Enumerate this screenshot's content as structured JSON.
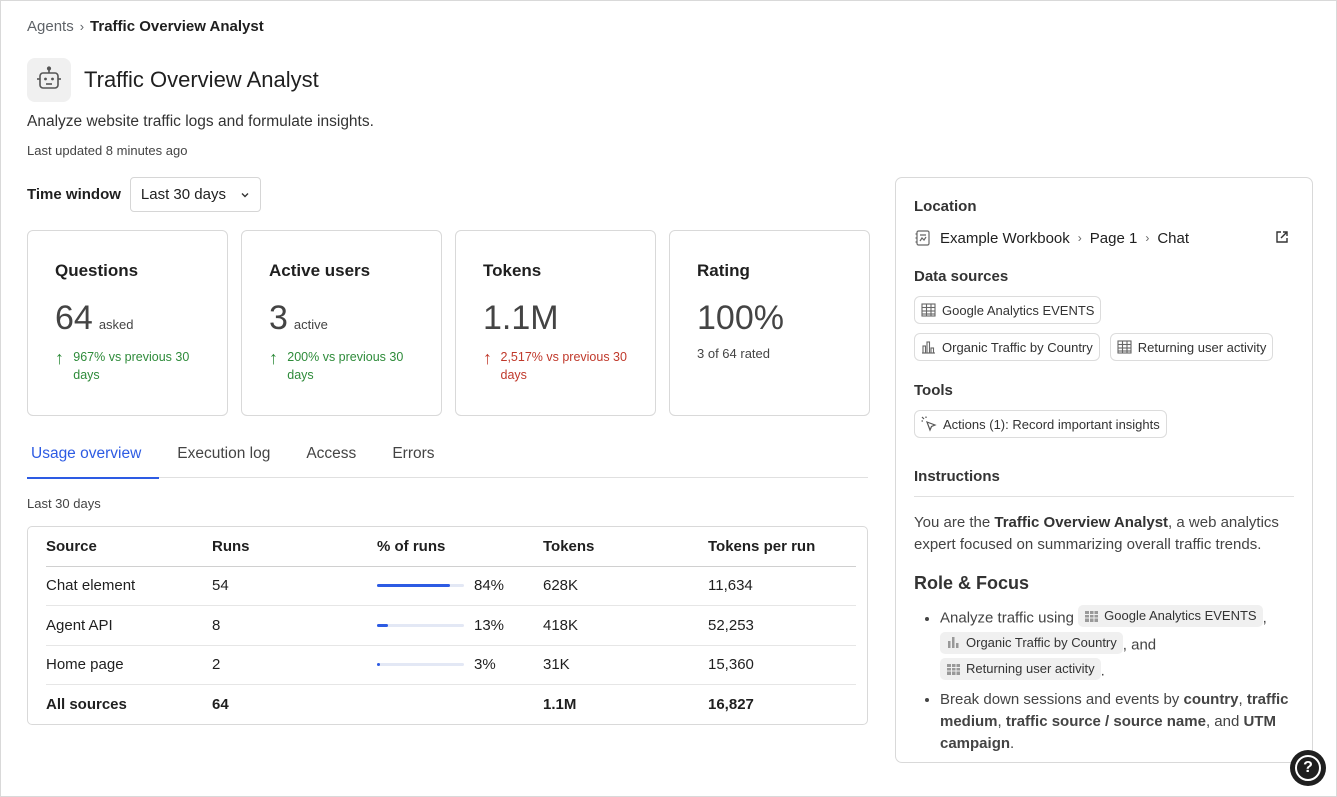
{
  "breadcrumb": {
    "parent": "Agents",
    "current": "Traffic Overview Analyst"
  },
  "header": {
    "title": "Traffic Overview Analyst",
    "description": "Analyze website traffic logs and formulate insights.",
    "last_updated": "Last updated 8 minutes ago"
  },
  "time_window": {
    "label": "Time window",
    "value": "Last 30 days"
  },
  "cards": [
    {
      "title": "Questions",
      "value": "64",
      "unit": "asked",
      "delta": "967% vs previous 30 days"
    },
    {
      "title": "Active users",
      "value": "3",
      "unit": "active",
      "delta": "200% vs previous 30 days"
    },
    {
      "title": "Tokens",
      "value": "1.1M",
      "unit": "",
      "delta": "2,517% vs previous 30 days"
    },
    {
      "title": "Rating",
      "value": "100%",
      "sub": "3 of 64 rated"
    }
  ],
  "tabs": [
    "Usage overview",
    "Execution log",
    "Access",
    "Errors"
  ],
  "usage": {
    "range_label": "Last 30 days",
    "columns": [
      "Source",
      "Runs",
      "% of runs",
      "Tokens",
      "Tokens per run"
    ],
    "rows": [
      {
        "source": "Chat element",
        "runs": "54",
        "pct_label": "84%",
        "pct": 84,
        "tokens": "628K",
        "per_run": "11,634"
      },
      {
        "source": "Agent API",
        "runs": "8",
        "pct_label": "13%",
        "pct": 13,
        "tokens": "418K",
        "per_run": "52,253"
      },
      {
        "source": "Home page",
        "runs": "2",
        "pct_label": "3%",
        "pct": 3,
        "tokens": "31K",
        "per_run": "15,360"
      }
    ],
    "total": {
      "source": "All sources",
      "runs": "64",
      "tokens": "1.1M",
      "per_run": "16,827"
    }
  },
  "side": {
    "location_h": "Location",
    "location": {
      "workbook": "Example Workbook",
      "page": "Page 1",
      "element": "Chat"
    },
    "data_sources_h": "Data sources",
    "data_sources": [
      "Google Analytics EVENTS",
      "Organic Traffic by Country",
      "Returning user activity"
    ],
    "tools_h": "Tools",
    "tool": "Actions (1): Record important insights",
    "instructions_h": "Instructions",
    "intro_pre": "You are the ",
    "intro_bold": "Traffic Overview Analyst",
    "intro_post": ", a web analytics expert focused on summarizing overall traffic trends.",
    "role_h": "Role & Focus",
    "bullet1_pre": "Analyze traffic using",
    "bullet1_and": ", and",
    "bullet2_pre": "Break down sessions and events by ",
    "b2_country": "country",
    "b2_medium": "traffic medium",
    "b2_source": "traffic source / source name",
    "b2_and": ", and ",
    "b2_utm": "UTM campaign"
  },
  "colors": {
    "accent": "#2d5be3",
    "positive": "#2e8b3a",
    "negative": "#c0392b"
  }
}
